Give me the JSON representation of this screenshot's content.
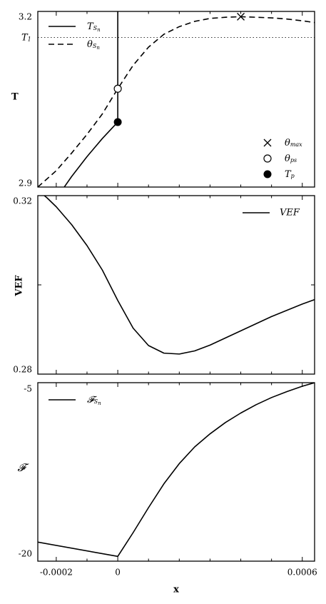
{
  "shared_x": {
    "label": "x",
    "lim": [
      -0.00026,
      0.00064
    ],
    "ticks": [
      -0.0002,
      0,
      0.0006
    ],
    "tick_labels": [
      "-0.0002",
      "0",
      "0.0006"
    ],
    "minor_ticks": [
      -0.0001,
      0.0001,
      0.0002,
      0.0003,
      0.0004,
      0.0005
    ]
  },
  "chart_data": [
    {
      "type": "line",
      "ylabel": "T",
      "ylim": [
        2.9,
        3.2
      ],
      "yticks": [
        2.9,
        3.2
      ],
      "ytick_labels": [
        "2.9",
        "3.2"
      ],
      "reference_line": {
        "y": 3.1555,
        "label_main": "T",
        "label_sub": "1",
        "style": "dotted"
      },
      "vertical_line": {
        "x": 0,
        "y_from": 3.011,
        "y_to": 3.2
      },
      "series": [
        {
          "name_main": "T",
          "name_sub": "S",
          "name_subsub": "n",
          "style": "solid",
          "x": [
            -0.00019,
            -0.00015,
            -0.0001,
            -5e-05,
            0
          ],
          "y": [
            2.888,
            2.918,
            2.952,
            2.983,
            3.011
          ]
        },
        {
          "name_main": "θ",
          "name_sub": "S",
          "name_subsub": "n",
          "style": "dashed",
          "x": [
            -0.00026,
            -0.0002,
            -0.00015,
            -0.0001,
            -5e-05,
            0,
            5e-05,
            0.0001,
            0.00015,
            0.0002,
            0.00025,
            0.0003,
            0.00035,
            0.0004,
            0.00045,
            0.0005,
            0.00055,
            0.0006,
            0.00064
          ],
          "y": [
            2.9,
            2.928,
            2.958,
            2.99,
            3.025,
            3.068,
            3.108,
            3.139,
            3.161,
            3.174,
            3.183,
            3.188,
            3.19,
            3.191,
            3.19,
            3.189,
            3.187,
            3.184,
            3.181
          ]
        }
      ],
      "markers": [
        {
          "name_main": "θ",
          "name_sub": "max",
          "symbol": "x",
          "x": 0.0004,
          "y": 3.191
        },
        {
          "name_main": "θ",
          "name_sub": "ps",
          "symbol": "open-circle",
          "x": 0,
          "y": 3.068
        },
        {
          "name_main": "T",
          "name_sub": "p",
          "symbol": "filled-circle",
          "x": 0,
          "y": 3.011
        }
      ],
      "legend_upper": "top-left",
      "legend_lower": "bottom-right"
    },
    {
      "type": "line",
      "ylabel": "VEF",
      "ylim": [
        0.28,
        0.32
      ],
      "yticks": [
        0.28,
        0.32
      ],
      "ytick_labels": [
        "0.28",
        "0.32"
      ],
      "minor_yticks": [
        0.3
      ],
      "series": [
        {
          "name": "VEF",
          "style": "solid",
          "x": [
            -0.00026,
            -0.00023,
            -0.0002,
            -0.00015,
            -0.0001,
            -5e-05,
            0,
            5e-05,
            0.0001,
            0.00015,
            0.0002,
            0.00025,
            0.0003,
            0.00035,
            0.0004,
            0.00045,
            0.0005,
            0.00055,
            0.0006,
            0.00064
          ],
          "y": [
            0.3212,
            0.3195,
            0.3175,
            0.3135,
            0.3088,
            0.3033,
            0.2965,
            0.2903,
            0.2864,
            0.2847,
            0.2845,
            0.2852,
            0.2865,
            0.2881,
            0.2897,
            0.2913,
            0.2929,
            0.2943,
            0.2957,
            0.2967
          ]
        }
      ],
      "legend": "top-right"
    },
    {
      "type": "line",
      "ylabel": "𝓕",
      "ylim": [
        -20,
        -5
      ],
      "yticks": [
        -20,
        -5
      ],
      "ytick_labels": [
        "-20",
        "-5"
      ],
      "series": [
        {
          "name_main": "𝓕",
          "name_sub": "S",
          "name_subsub": "n",
          "style": "solid",
          "x": [
            -0.00026,
            0,
            5e-05,
            0.0001,
            0.00015,
            0.0002,
            0.00025,
            0.0003,
            0.00035,
            0.0004,
            0.00045,
            0.0005,
            0.00055,
            0.0006,
            0.00064
          ],
          "y": [
            -18.4,
            -19.6,
            -17.6,
            -15.5,
            -13.5,
            -11.8,
            -10.4,
            -9.3,
            -8.35,
            -7.55,
            -6.85,
            -6.25,
            -5.75,
            -5.3,
            -5.0
          ]
        }
      ],
      "legend": "top-left"
    }
  ]
}
